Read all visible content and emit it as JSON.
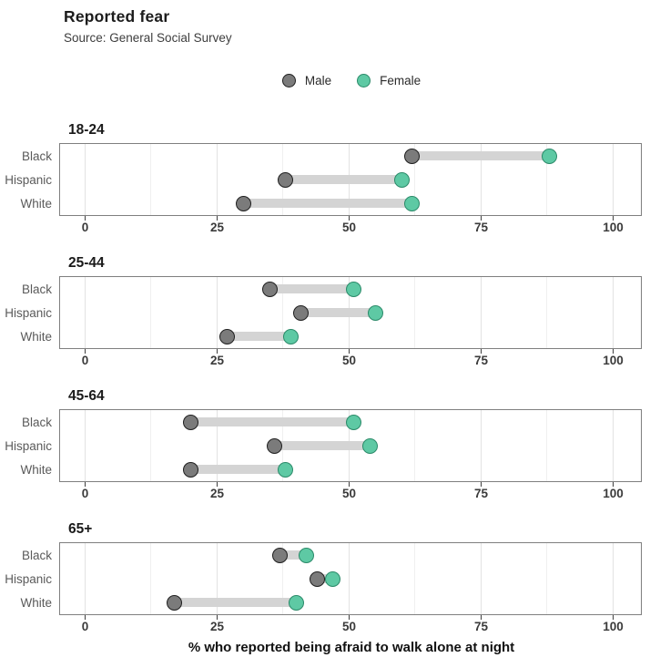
{
  "header": {
    "title": "Reported fear",
    "subtitle": "Source: General Social Survey"
  },
  "legend": {
    "items": [
      {
        "label": "Male",
        "color": "#7b7b7b",
        "border": "#1f1f1f"
      },
      {
        "label": "Female",
        "color": "#5ec9a4",
        "border": "#2b8a69"
      }
    ]
  },
  "chart_data": {
    "type": "dumbbell",
    "title": "Reported fear",
    "subtitle": "Source: General Social Survey",
    "xlabel": "% who reported being afraid to walk alone at night",
    "xlim": [
      0,
      100
    ],
    "x_ticks": [
      0,
      25,
      50,
      75,
      100
    ],
    "x_minor_gridlines": [
      12.5,
      37.5,
      62.5,
      87.5
    ],
    "grid": "vertical",
    "legend_position": "top-center",
    "series_names": [
      "Male",
      "Female"
    ],
    "colors": {
      "male": "#7b7b7b",
      "female": "#5ec9a4",
      "connector_bar": "#d4d4d4"
    },
    "facets": [
      {
        "title": "18-24",
        "rows": [
          {
            "label": "Black",
            "male": 62,
            "female": 88
          },
          {
            "label": "Hispanic",
            "male": 38,
            "female": 60
          },
          {
            "label": "White",
            "male": 30,
            "female": 62
          }
        ]
      },
      {
        "title": "25-44",
        "rows": [
          {
            "label": "Black",
            "male": 35,
            "female": 51
          },
          {
            "label": "Hispanic",
            "male": 41,
            "female": 55
          },
          {
            "label": "White",
            "male": 27,
            "female": 39
          }
        ]
      },
      {
        "title": "45-64",
        "rows": [
          {
            "label": "Black",
            "male": 20,
            "female": 51
          },
          {
            "label": "Hispanic",
            "male": 36,
            "female": 54
          },
          {
            "label": "White",
            "male": 20,
            "female": 38
          }
        ]
      },
      {
        "title": "65+",
        "rows": [
          {
            "label": "Black",
            "male": 37,
            "female": 42
          },
          {
            "label": "Hispanic",
            "male": 44,
            "female": 47
          },
          {
            "label": "White",
            "male": 17,
            "female": 40
          }
        ]
      }
    ]
  },
  "axis": {
    "caption": "% who reported being afraid to walk alone at night",
    "tick_labels": [
      "0",
      "25",
      "50",
      "75",
      "100"
    ]
  }
}
